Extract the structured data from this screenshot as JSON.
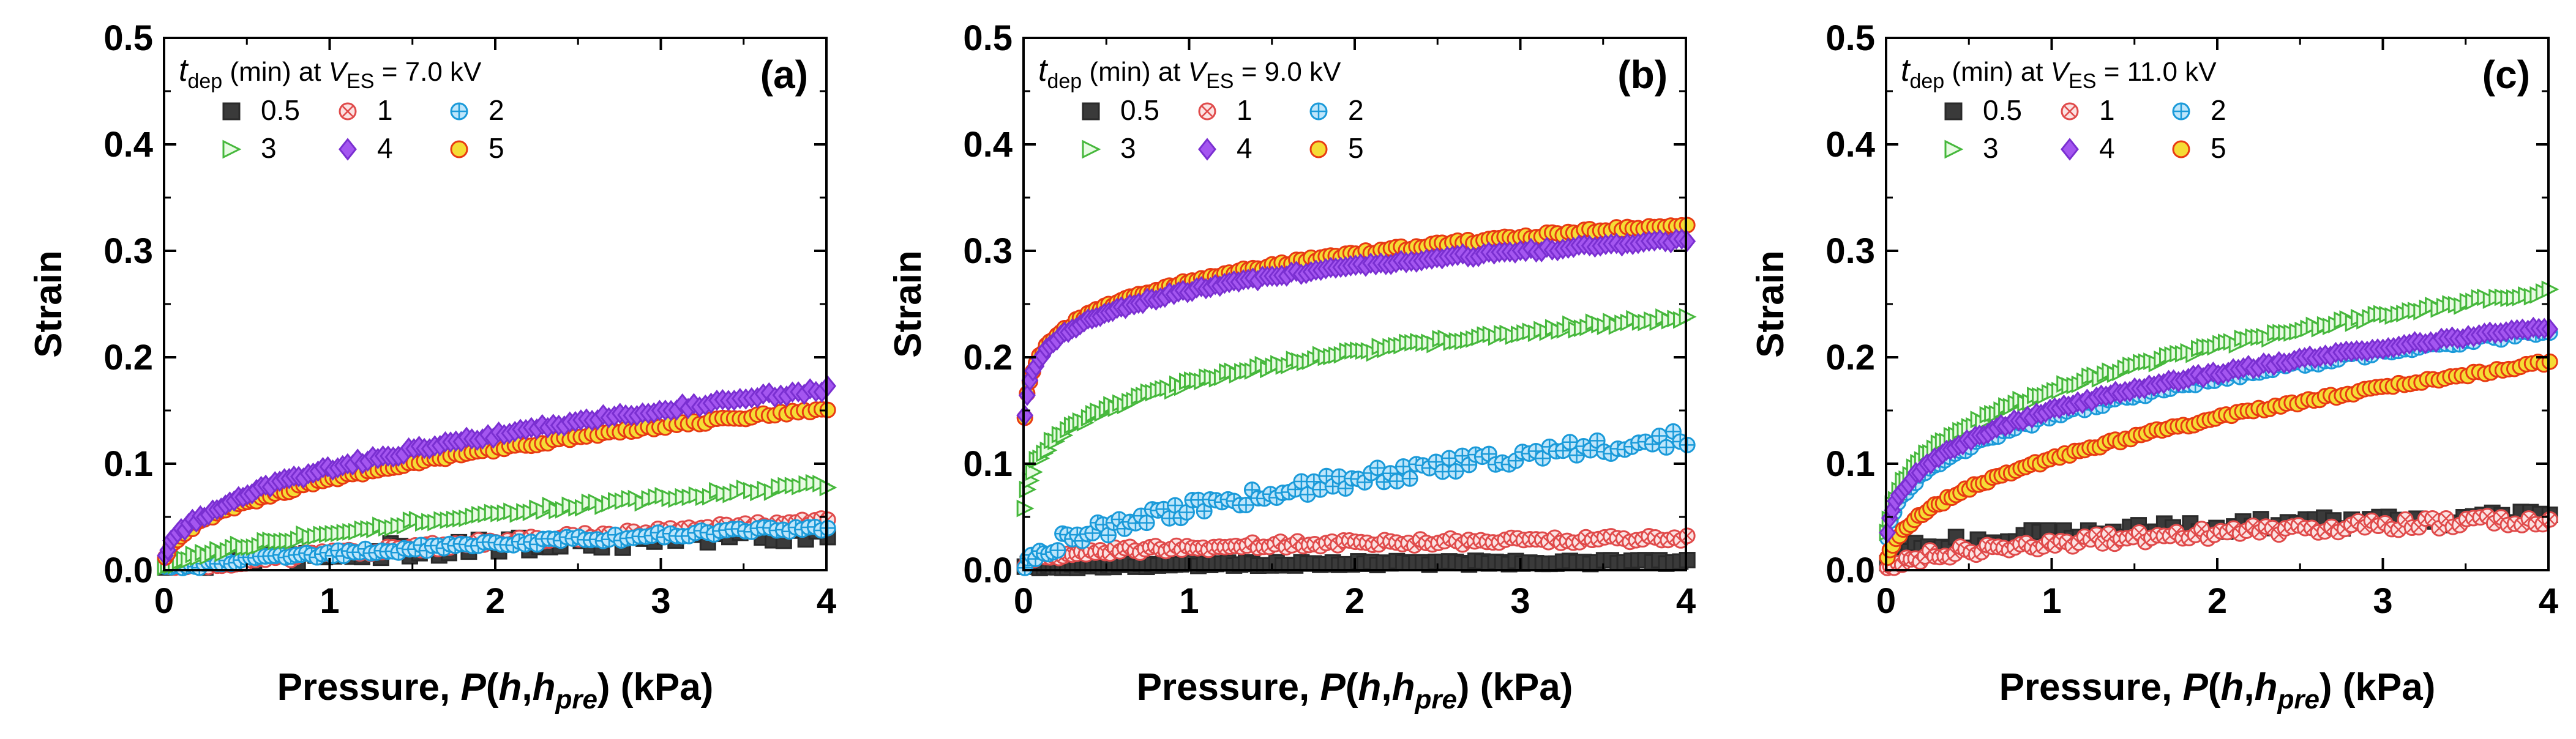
{
  "figure": {
    "background": "#ffffff"
  },
  "series_styles": {
    "0.5": {
      "marker": "square",
      "face": "#3a3a3a",
      "edge": "#2a2a2a",
      "hollow": false
    },
    "1": {
      "marker": "circle-x",
      "face": "#fbe3e3",
      "edge": "#e04a4a",
      "hollow": true
    },
    "2": {
      "marker": "circle-plus",
      "face": "#bfe6fb",
      "edge": "#1a9ad9",
      "hollow": true
    },
    "3": {
      "marker": "triangle-right",
      "face": "#e8fbe3",
      "edge": "#46b83c",
      "hollow": true
    },
    "4": {
      "marker": "diamond",
      "face": "#a456f0",
      "edge": "#7a2fd1",
      "hollow": false
    },
    "5": {
      "marker": "circle",
      "face": "#f5dc35",
      "edge": "#e83a12",
      "hollow": false
    }
  },
  "chart_data": [
    {
      "type": "scatter",
      "panel_label": "(a)",
      "legend_title": {
        "var": "t",
        "var_sub": "dep",
        "mid": " (min) at ",
        "v": "V",
        "v_sub": "ES",
        "value": " = 7.0 kV"
      },
      "legend_entries": [
        "0.5",
        "1",
        "2",
        "3",
        "4",
        "5"
      ],
      "xlabel": "Pressure, P(h,h_pre) (kPa)",
      "ylabel": "Strain",
      "xlim": [
        0,
        4
      ],
      "ylim": [
        0,
        0.5
      ],
      "xticks": [
        "0",
        "1",
        "2",
        "3",
        "4"
      ],
      "yticks": [
        "0.0",
        "0.1",
        "0.2",
        "0.3",
        "0.4",
        "0.5"
      ],
      "series": [
        {
          "name": "0.5",
          "a": 0.035,
          "b": 3.0,
          "p": 0.6,
          "noise": 0.007,
          "n": 70
        },
        {
          "name": "1",
          "a": 0.046,
          "b": 3.0,
          "p": 0.8,
          "noise": 0.003,
          "n": 120
        },
        {
          "name": "2",
          "a": 0.04,
          "b": 3.0,
          "p": 0.7,
          "noise": 0.003,
          "n": 120
        },
        {
          "name": "3",
          "a": 0.08,
          "b": 3.0,
          "p": 0.6,
          "noise": 0.003,
          "n": 110
        },
        {
          "name": "4",
          "a": 0.17,
          "b": 3.0,
          "p": 0.42,
          "noise": 0.003,
          "n": 130
        },
        {
          "name": "5",
          "a": 0.152,
          "b": 3.0,
          "p": 0.42,
          "noise": 0.002,
          "n": 130
        }
      ]
    },
    {
      "type": "scatter",
      "panel_label": "(b)",
      "legend_title": {
        "var": "t",
        "var_sub": "dep",
        "mid": " (min) at ",
        "v": "V",
        "v_sub": "ES",
        "value": " = 9.0 kV"
      },
      "legend_entries": [
        "0.5",
        "1",
        "2",
        "3",
        "4",
        "5"
      ],
      "xlabel": "Pressure, P(h,h_pre) (kPa)",
      "ylabel": "Strain",
      "xlim": [
        0,
        4
      ],
      "ylim": [
        0,
        0.5
      ],
      "xticks": [
        "0",
        "1",
        "2",
        "3",
        "4"
      ],
      "yticks": [
        "0.0",
        "0.1",
        "0.2",
        "0.3",
        "0.4",
        "0.5"
      ],
      "series": [
        {
          "name": "0.5",
          "a": 0.008,
          "b": 3.0,
          "p": 0.3,
          "noise": 0.002,
          "n": 110
        },
        {
          "name": "1",
          "a": 0.03,
          "b": 3.0,
          "p": 0.25,
          "noise": 0.003,
          "n": 120
        },
        {
          "name": "2",
          "a": 0.125,
          "b": 3.0,
          "p": 0.55,
          "noise": 0.008,
          "n": 110
        },
        {
          "name": "3",
          "a": 0.238,
          "b": 3.0,
          "p": 0.22,
          "noise": 0.003,
          "n": 130
        },
        {
          "name": "4",
          "a": 0.31,
          "b": 3.0,
          "p": 0.12,
          "noise": 0.002,
          "n": 140
        },
        {
          "name": "5",
          "a": 0.325,
          "b": 3.0,
          "p": 0.13,
          "noise": 0.002,
          "n": 140
        }
      ]
    },
    {
      "type": "scatter",
      "panel_label": "(c)",
      "legend_title": {
        "var": "t",
        "var_sub": "dep",
        "mid": " (min) at ",
        "v": "V",
        "v_sub": "ES",
        "value": " = 11.0 kV"
      },
      "legend_entries": [
        "0.5",
        "1",
        "2",
        "3",
        "4",
        "5"
      ],
      "xlabel": "Pressure, P(h,h_pre) (kPa)",
      "ylabel": "Strain",
      "xlim": [
        0,
        4
      ],
      "ylim": [
        0,
        0.5
      ],
      "xticks": [
        "0",
        "1",
        "2",
        "3",
        "4"
      ],
      "yticks": [
        "0.0",
        "0.1",
        "0.2",
        "0.3",
        "0.4",
        "0.5"
      ],
      "series": [
        {
          "name": "0.5",
          "a": 0.05,
          "b": 3.0,
          "p": 0.3,
          "noise": 0.006,
          "n": 80
        },
        {
          "name": "1",
          "a": 0.048,
          "b": 3.0,
          "p": 0.45,
          "noise": 0.005,
          "n": 110
        },
        {
          "name": "2",
          "a": 0.225,
          "b": 3.0,
          "p": 0.32,
          "noise": 0.003,
          "n": 110
        },
        {
          "name": "3",
          "a": 0.262,
          "b": 3.0,
          "p": 0.32,
          "noise": 0.003,
          "n": 130
        },
        {
          "name": "4",
          "a": 0.228,
          "b": 3.0,
          "p": 0.3,
          "noise": 0.002,
          "n": 140
        },
        {
          "name": "5",
          "a": 0.195,
          "b": 3.0,
          "p": 0.45,
          "noise": 0.002,
          "n": 130
        }
      ]
    }
  ]
}
